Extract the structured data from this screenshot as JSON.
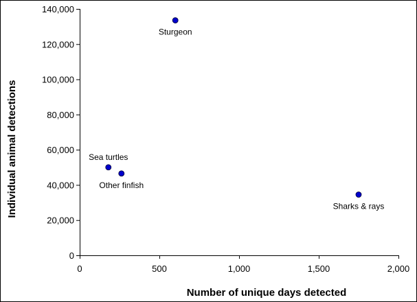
{
  "chart_data": {
    "type": "scatter",
    "title": "",
    "xlabel": "Number of unique days detected",
    "ylabel": "Individual animal detections",
    "xlim": [
      0,
      2000
    ],
    "ylim": [
      0,
      140000
    ],
    "x_ticks": [
      0,
      500,
      1000,
      1500,
      2000
    ],
    "y_ticks": [
      0,
      20000,
      40000,
      60000,
      80000,
      100000,
      120000,
      140000
    ],
    "x_tick_labels": [
      "0",
      "500",
      "1,000",
      "1,500",
      "2,000"
    ],
    "y_tick_labels": [
      "0",
      "20,000",
      "40,000",
      "60,000",
      "80,000",
      "100,000",
      "120,000",
      "140,000"
    ],
    "grid": false,
    "legend": "none",
    "marker_color": "#0000cc",
    "points": [
      {
        "label": "Sturgeon",
        "x": 600,
        "y": 133500,
        "label_position": "below"
      },
      {
        "label": "Sea turtles",
        "x": 180,
        "y": 50000,
        "label_position": "above"
      },
      {
        "label": "Other finfish",
        "x": 262,
        "y": 46500,
        "label_position": "below"
      },
      {
        "label": "Sharks & rays",
        "x": 1750,
        "y": 34500,
        "label_position": "below"
      }
    ]
  }
}
